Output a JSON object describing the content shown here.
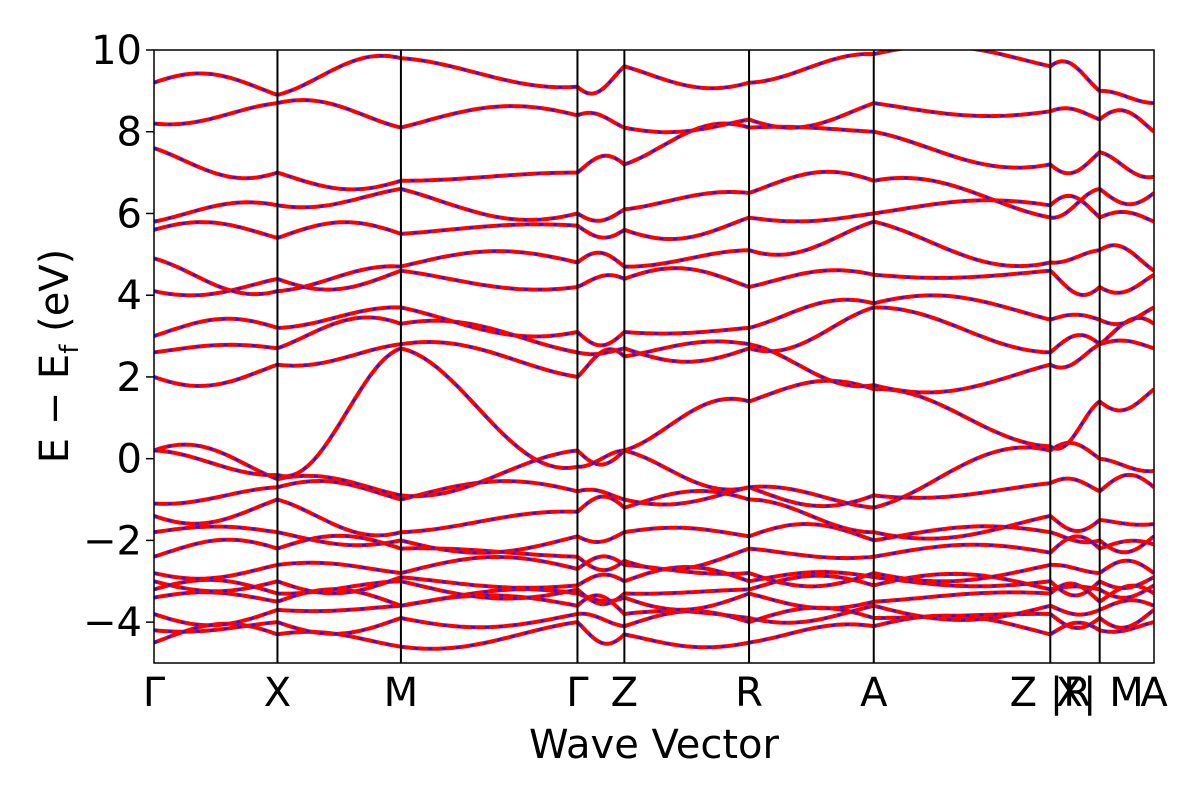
{
  "chart_data": {
    "type": "line",
    "title": "",
    "xlabel": "Wave Vector",
    "ylabel": "E − E",
    "ylabel_sub": "f",
    "ylabel_unit": " (eV)",
    "ylim": [
      -5,
      10
    ],
    "yticks": [
      -4,
      -2,
      0,
      2,
      4,
      6,
      8,
      10
    ],
    "ytick_labels": [
      "−4",
      "−2",
      "0",
      "2",
      "4",
      "6",
      "8",
      "10"
    ],
    "xlim": [
      0,
      8.1
    ],
    "kpoints": [
      {
        "label": "Γ",
        "x": 0.0
      },
      {
        "label": "X",
        "x": 1.0
      },
      {
        "label": "M",
        "x": 2.0
      },
      {
        "label": "Γ",
        "x": 3.43
      },
      {
        "label": "Z",
        "x": 3.81
      },
      {
        "label": "R",
        "x": 4.82
      },
      {
        "label": "A",
        "x": 5.83
      },
      {
        "label": "Z |R",
        "x": 7.26
      },
      {
        "label": "X| M",
        "x": 7.66
      },
      {
        "label": "A",
        "x": 8.1
      }
    ],
    "grid": false,
    "series_colors": {
      "primary": "#ff0000",
      "overlay": "#1a1aff"
    },
    "segments": [
      [
        0.0,
        1.0
      ],
      [
        1.0,
        2.0
      ],
      [
        2.0,
        3.43
      ],
      [
        3.43,
        3.81
      ],
      [
        3.81,
        4.82
      ],
      [
        4.82,
        5.83
      ],
      [
        5.83,
        7.26
      ],
      [
        7.26,
        7.66
      ],
      [
        7.66,
        8.1
      ]
    ],
    "bands": [
      [
        -4.5,
        -4.3,
        -4.6,
        -4.0,
        -4.3,
        -4.5,
        -4.1,
        -4.3,
        -4.2,
        -4.0
      ],
      [
        -4.2,
        -4.0,
        -3.9,
        -3.8,
        -4.1,
        -4.0,
        -3.9,
        -3.8,
        -3.9,
        -3.7
      ],
      [
        -3.8,
        -3.7,
        -3.6,
        -3.6,
        -3.8,
        -3.9,
        -3.6,
        -3.6,
        -3.7,
        -3.6
      ],
      [
        -3.4,
        -3.5,
        -3.6,
        -3.3,
        -3.4,
        -3.3,
        -3.5,
        -3.3,
        -3.5,
        -3.3
      ],
      [
        -3.2,
        -3.3,
        -3.0,
        -3.2,
        -3.3,
        -3.2,
        -3.1,
        -3.2,
        -3.2,
        -3.1
      ],
      [
        -3.0,
        -3.0,
        -2.9,
        -3.1,
        -3.0,
        -3.0,
        -2.9,
        -3.0,
        -3.0,
        -2.9
      ],
      [
        -2.8,
        -2.6,
        -2.8,
        -2.7,
        -2.6,
        -2.8,
        -2.8,
        -2.6,
        -2.8,
        -2.8
      ],
      [
        -2.4,
        -2.2,
        -2.2,
        -2.4,
        -2.5,
        -2.2,
        -2.4,
        -2.3,
        -2.2,
        -2.1
      ],
      [
        -1.8,
        -1.8,
        -2.0,
        -1.9,
        -1.8,
        -1.9,
        -2.0,
        -1.8,
        -2.0,
        -1.9
      ],
      [
        -1.4,
        -1.0,
        -1.8,
        -1.3,
        -1.2,
        -1.0,
        -1.8,
        -1.4,
        -1.5,
        -1.6
      ],
      [
        -1.1,
        -0.7,
        -1.0,
        -0.8,
        -1.0,
        -0.7,
        -0.9,
        -0.6,
        -0.8,
        -0.7
      ],
      [
        0.2,
        -0.5,
        -0.9,
        0.2,
        0.2,
        -0.7,
        -1.2,
        0.2,
        0.0,
        -0.3
      ],
      [
        0.2,
        -0.4,
        2.7,
        -0.2,
        0.2,
        1.4,
        1.7,
        0.3,
        1.4,
        1.7
      ],
      [
        2.0,
        2.3,
        2.8,
        2.0,
        2.5,
        2.8,
        1.8,
        2.3,
        2.8,
        2.7
      ],
      [
        2.6,
        2.7,
        3.3,
        2.6,
        2.7,
        2.7,
        3.7,
        2.6,
        2.8,
        3.3
      ],
      [
        3.0,
        3.2,
        3.7,
        3.1,
        3.1,
        3.2,
        3.8,
        3.4,
        3.4,
        3.7
      ],
      [
        4.1,
        4.4,
        4.6,
        4.2,
        4.4,
        4.2,
        4.5,
        4.6,
        4.2,
        4.5
      ],
      [
        4.9,
        4.1,
        4.7,
        4.8,
        4.7,
        5.1,
        5.8,
        4.8,
        5.1,
        4.6
      ],
      [
        5.6,
        5.4,
        5.5,
        5.7,
        5.6,
        5.9,
        6.0,
        6.2,
        5.9,
        5.8
      ],
      [
        5.8,
        6.2,
        6.6,
        6.0,
        6.1,
        6.5,
        6.8,
        5.9,
        6.6,
        6.5
      ],
      [
        7.6,
        7.0,
        6.8,
        7.0,
        7.2,
        8.1,
        8.0,
        7.2,
        7.5,
        6.9
      ],
      [
        8.2,
        8.7,
        8.1,
        8.4,
        8.1,
        8.3,
        8.7,
        8.5,
        8.3,
        8.0
      ],
      [
        9.2,
        8.9,
        9.8,
        9.1,
        9.6,
        9.2,
        9.9,
        9.6,
        9.0,
        8.7
      ]
    ]
  }
}
